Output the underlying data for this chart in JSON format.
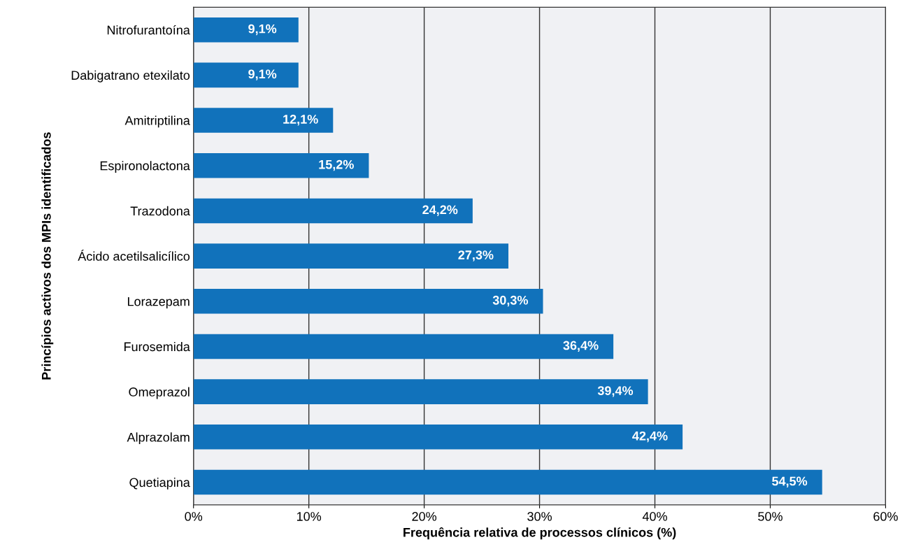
{
  "chart_data": {
    "type": "bar",
    "orientation": "horizontal",
    "xlabel": "Frequência relativa de processos clínicos (%)",
    "ylabel": "Princípios activos dos MPIs identificados",
    "categories": [
      "Nitrofurantoína",
      "Dabigatrano etexilato",
      "Amitriptilina",
      "Espironolactona",
      "Trazodona",
      "Ácido acetilsalicílico",
      "Lorazepam",
      "Furosemida",
      "Omeprazol",
      "Alprazolam",
      "Quetiapina"
    ],
    "values": [
      9.1,
      9.1,
      12.1,
      15.2,
      24.2,
      27.3,
      30.3,
      36.4,
      39.4,
      42.4,
      54.5
    ],
    "value_labels": [
      "9,1%",
      "9,1%",
      "12,1%",
      "15,2%",
      "24,2%",
      "27,3%",
      "30,3%",
      "36,4%",
      "39,4%",
      "42,4%",
      "54,5%"
    ],
    "color": "#1172bb",
    "xlim": [
      0,
      60
    ],
    "xticks": [
      {
        "value": 0,
        "label": "0%"
      },
      {
        "value": 10,
        "label": "10%"
      },
      {
        "value": 20,
        "label": "20%"
      },
      {
        "value": 30,
        "label": "30%"
      },
      {
        "value": 40,
        "label": "40%"
      },
      {
        "value": 50,
        "label": "50%"
      },
      {
        "value": 60,
        "label": "60%"
      }
    ],
    "grid": "x",
    "legend": false
  }
}
